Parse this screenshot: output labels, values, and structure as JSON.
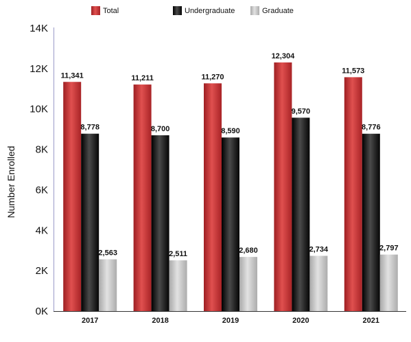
{
  "chart_data": {
    "type": "bar",
    "ylabel": "Number Enrolled",
    "ylim": [
      0,
      14000
    ],
    "yticks": [
      {
        "value": 0,
        "label": "0K"
      },
      {
        "value": 2000,
        "label": "2K"
      },
      {
        "value": 4000,
        "label": "4K"
      },
      {
        "value": 6000,
        "label": "6K"
      },
      {
        "value": 8000,
        "label": "8K"
      },
      {
        "value": 10000,
        "label": "10K"
      },
      {
        "value": 12000,
        "label": "12K"
      },
      {
        "value": 14000,
        "label": "14K"
      }
    ],
    "categories": [
      "2017",
      "2018",
      "2019",
      "2020",
      "2021"
    ],
    "legend_position": "top",
    "grid": false,
    "series": [
      {
        "name": "Total",
        "color": "#c42b2e",
        "values": [
          11341,
          11211,
          11270,
          12304,
          11573
        ],
        "labels": [
          "11,341",
          "11,211",
          "11,270",
          "12,304",
          "11,573"
        ]
      },
      {
        "name": "Undergraduate",
        "color": "#1a1a1a",
        "values": [
          8778,
          8700,
          8590,
          9570,
          8776
        ],
        "labels": [
          "8,778",
          "8,700",
          "8,590",
          "9,570",
          "8,776"
        ]
      },
      {
        "name": "Graduate",
        "color": "#bdbdbd",
        "values": [
          2563,
          2511,
          2680,
          2734,
          2797
        ],
        "labels": [
          "2,563",
          "2,511",
          "2,680",
          "2,734",
          "2,797"
        ]
      }
    ]
  }
}
